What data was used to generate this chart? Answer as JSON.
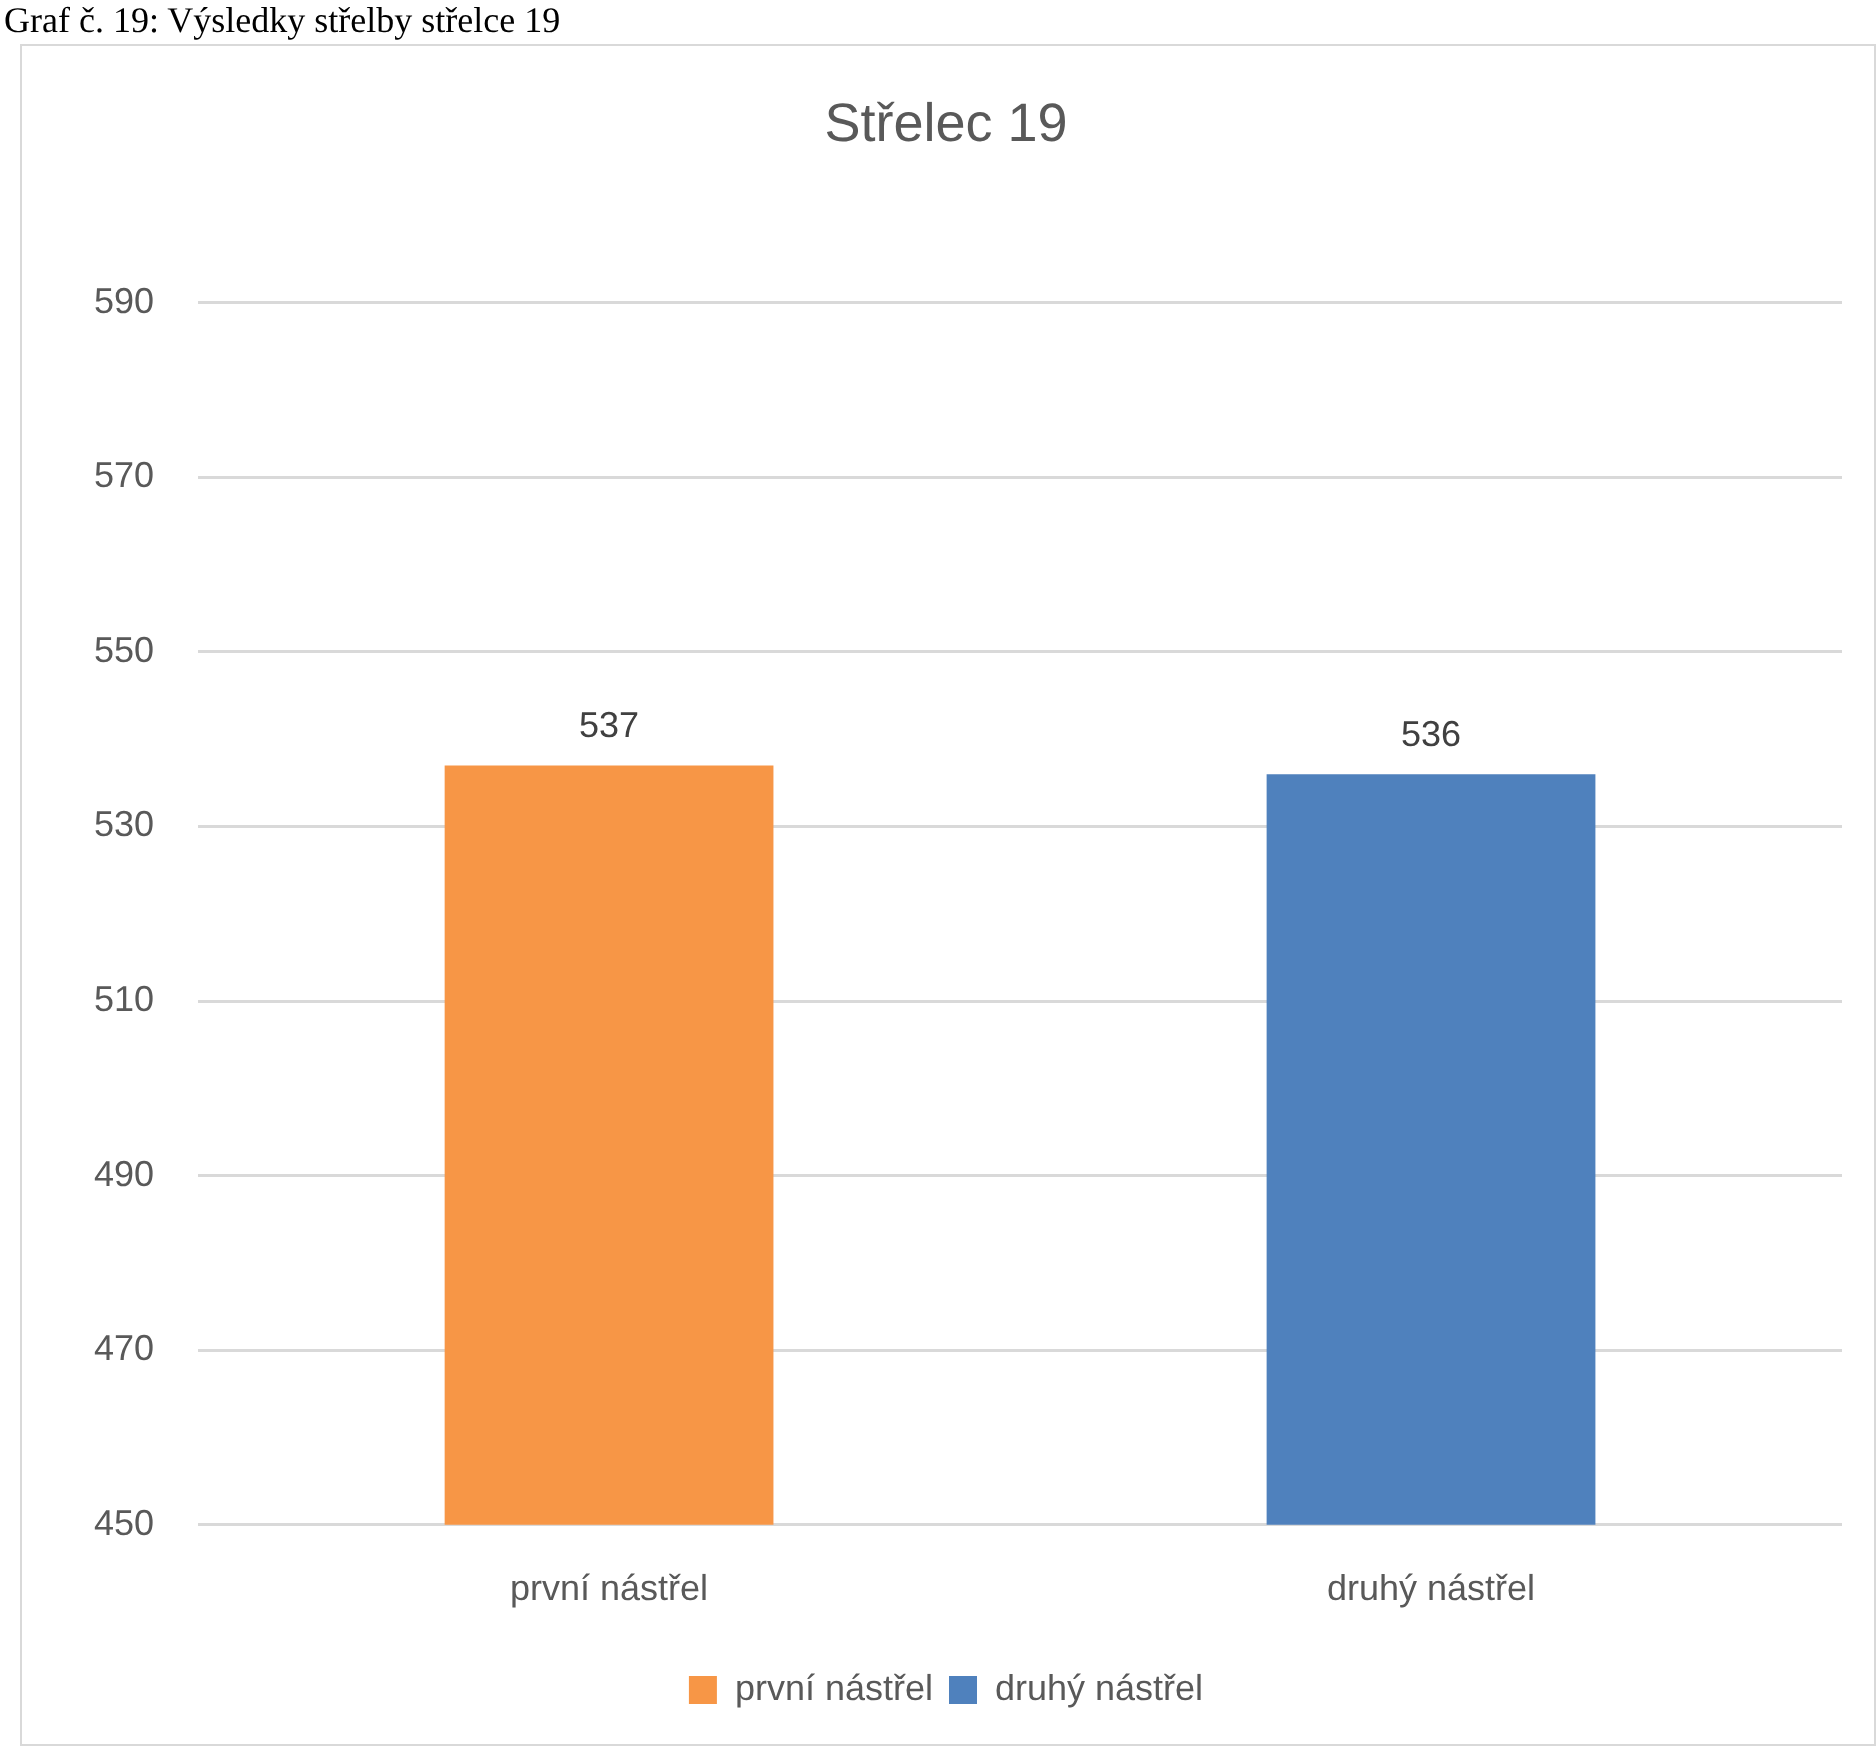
{
  "chart_data": {
    "type": "bar",
    "title": "Střelec 19",
    "annotations": [
      "Graf č. 19: Výsledky střelby střelce 19"
    ],
    "categories": [
      "první nástřel",
      "druhý nástřel"
    ],
    "series": [
      {
        "name": "první nástřel",
        "color": "#f79646",
        "values": [
          537,
          null
        ]
      },
      {
        "name": "druhý nástřel",
        "color": "#4f81bd",
        "values": [
          null,
          536
        ]
      }
    ],
    "ylim": [
      450,
      590
    ],
    "yticks": [
      450,
      470,
      490,
      510,
      530,
      550,
      570,
      590
    ],
    "grid": "y",
    "legend": "bottom",
    "data_labels": true
  }
}
